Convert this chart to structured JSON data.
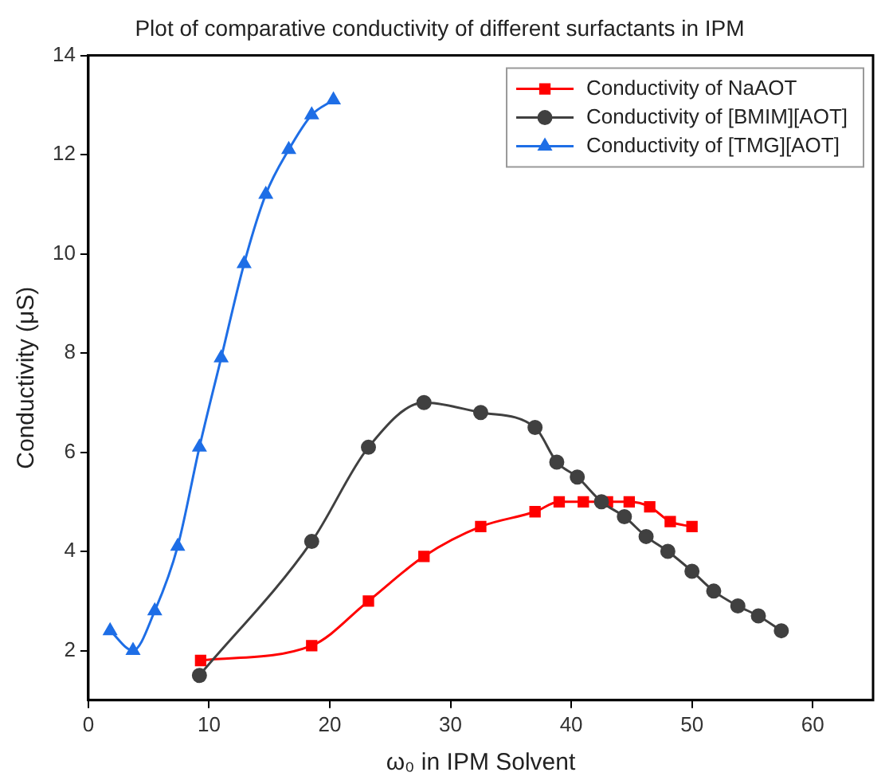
{
  "chart_data": {
    "type": "line",
    "title": "Plot of comparative conductivity of different surfactants in IPM",
    "xlabel": "ω₀ in IPM Solvent",
    "ylabel": "Conductivity (μS)",
    "xlim": [
      0,
      65
    ],
    "xticks": [
      0,
      10,
      20,
      30,
      40,
      50,
      60
    ],
    "ylim": [
      1,
      14
    ],
    "yticks": [
      2,
      4,
      6,
      8,
      10,
      12,
      14
    ],
    "grid": false,
    "legend": "top right",
    "line_style": "solid",
    "series": [
      {
        "name": "Conductivity of NaAOT",
        "color": "#ff0000",
        "marker": "square",
        "x": [
          9.3,
          18.5,
          23.2,
          27.8,
          32.5,
          37,
          39,
          41,
          43,
          44.8,
          46.5,
          48.2,
          50
        ],
        "values": [
          1.8,
          2.1,
          3.0,
          3.9,
          4.5,
          4.8,
          5.0,
          5.0,
          5.0,
          5.0,
          4.9,
          4.6,
          4.5
        ]
      },
      {
        "name": "Conductivity of [BMIM][AOT]",
        "color": "#404040",
        "marker": "circle",
        "x": [
          9.2,
          18.5,
          23.2,
          27.8,
          32.5,
          37,
          38.8,
          40.5,
          42.5,
          44.4,
          46.2,
          48,
          50,
          51.8,
          53.8,
          55.5,
          57.4
        ],
        "values": [
          1.5,
          4.2,
          6.1,
          7.0,
          6.8,
          6.5,
          5.8,
          5.5,
          5.0,
          4.7,
          4.3,
          4.0,
          3.6,
          3.2,
          2.9,
          2.7,
          2.4
        ]
      },
      {
        "name": "Conductivity of [TMG][AOT]",
        "color": "#1e6ee6",
        "marker": "triangle",
        "x": [
          1.8,
          3.7,
          5.5,
          7.4,
          9.2,
          11.0,
          12.9,
          14.7,
          16.6,
          18.5,
          20.3
        ],
        "values": [
          2.4,
          2.0,
          2.8,
          4.1,
          6.1,
          7.9,
          9.8,
          11.2,
          12.1,
          12.8,
          13.1
        ]
      }
    ]
  }
}
